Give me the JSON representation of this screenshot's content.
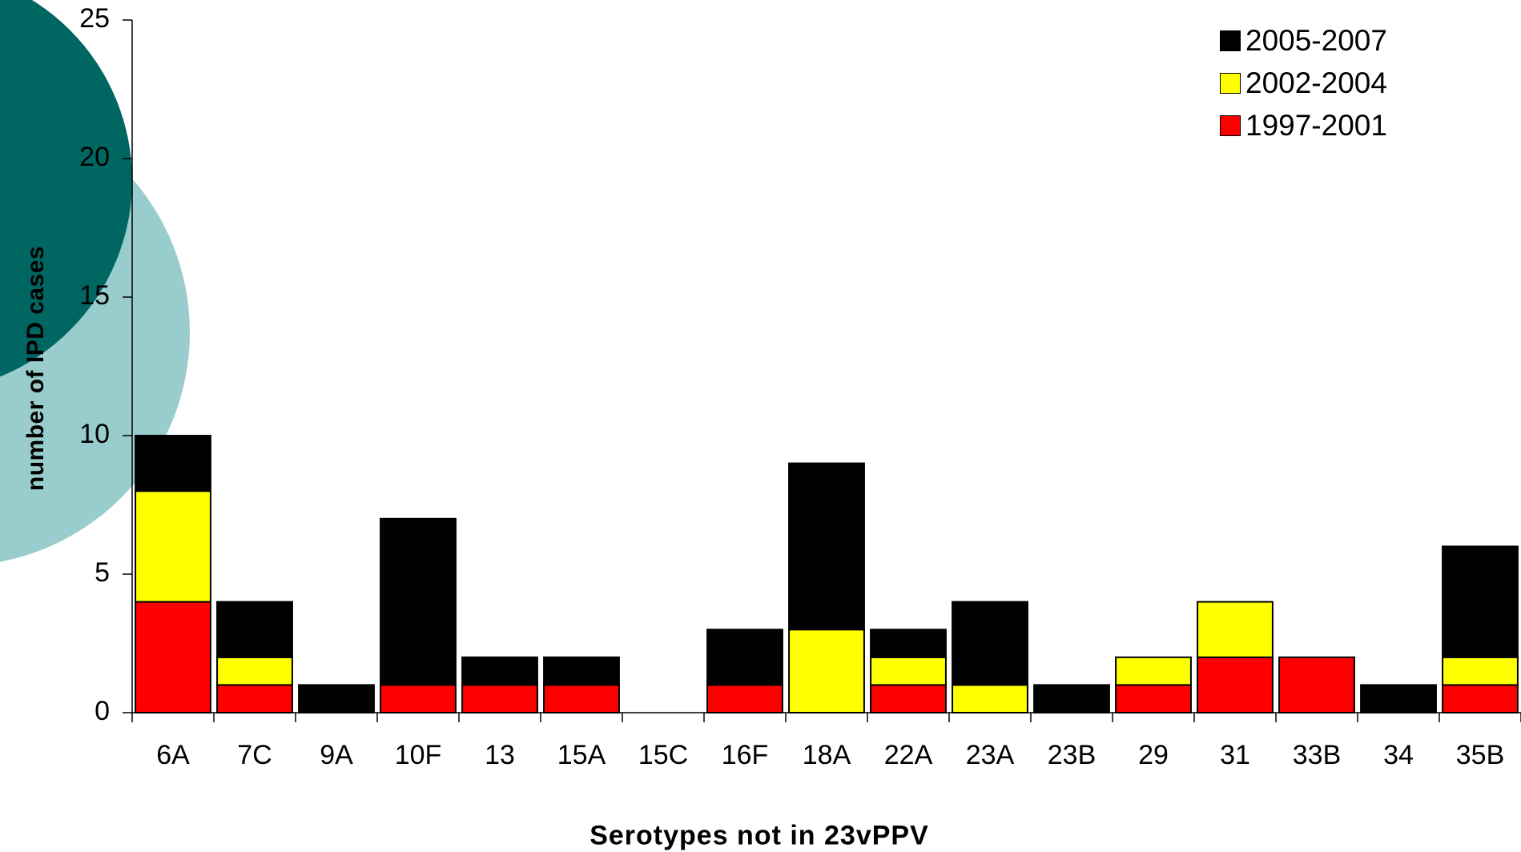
{
  "chart_data": {
    "type": "bar",
    "stacked": true,
    "xlabel": "Serotypes not in 23vPPV",
    "ylabel": "number of IPD cases",
    "ylim": [
      0,
      25
    ],
    "yticks": [
      "0",
      "5",
      "10",
      "15",
      "20",
      "25"
    ],
    "categories": [
      "6A",
      "7C",
      "9A",
      "10F",
      "13",
      "15A",
      "15C",
      "16F",
      "18A",
      "22A",
      "23A",
      "23B",
      "29",
      "31",
      "33B",
      "34",
      "35B"
    ],
    "series": [
      {
        "name": "1997-2001",
        "color": "#ff0000",
        "values": [
          4,
          1,
          0,
          1,
          1,
          1,
          0,
          1,
          0,
          1,
          0,
          0,
          1,
          2,
          2,
          0,
          1
        ]
      },
      {
        "name": "2002-2004",
        "color": "#ffff00",
        "values": [
          4,
          1,
          0,
          0,
          0,
          0,
          0,
          0,
          3,
          1,
          1,
          0,
          1,
          2,
          0,
          0,
          1
        ]
      },
      {
        "name": "2005-2007",
        "color": "#000000",
        "values": [
          2,
          2,
          1,
          6,
          1,
          1,
          0,
          2,
          6,
          1,
          3,
          1,
          0,
          0,
          0,
          1,
          4
        ]
      }
    ],
    "legend_position": "top-right",
    "grid": false
  },
  "decoration": {
    "circle_dark_color": "#006661",
    "circle_light_color": "#99cccc"
  }
}
